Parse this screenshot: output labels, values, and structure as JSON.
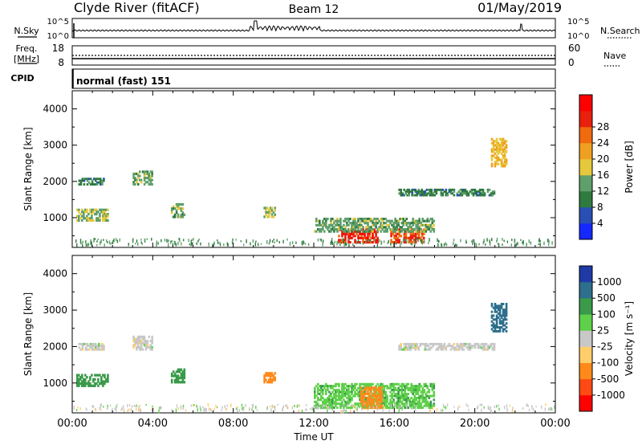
{
  "header": {
    "station": "Clyde River (fitACF)",
    "beam": "Beam 12",
    "date": "01/May/2019"
  },
  "noise_panel": {
    "left_label": "N.Sky",
    "right_label": "N.Search",
    "left_ticks": [
      "10^5",
      "10^0"
    ],
    "right_ticks": [
      "10^5",
      "10^0"
    ]
  },
  "freq_panel": {
    "left_label_1": "Freq.",
    "left_label_2": "[MHz]",
    "right_label": "Nave",
    "left_ticks": [
      "18",
      "8"
    ],
    "right_ticks": [
      "60",
      "0"
    ]
  },
  "cpid": {
    "label": "CPID",
    "value": "normal (fast) 151"
  },
  "x_axis": {
    "label": "Time UT",
    "ticks": [
      "00:00",
      "04:00",
      "08:00",
      "12:00",
      "16:00",
      "20:00",
      "00:00"
    ]
  },
  "colors": {
    "power_scale": [
      "#1428ff",
      "#2a4fb4",
      "#2f7a3f",
      "#5f9f6c",
      "#e6c83c",
      "#f0a020",
      "#f06a10",
      "#e8200c",
      "#ff0000"
    ],
    "velocity_scale": [
      "#ff0000",
      "#ff4a14",
      "#ff8a1a",
      "#ffcd6a",
      "#c8c8c8",
      "#5fd04a",
      "#3a9a4a",
      "#2d6f8c",
      "#1f3aa6"
    ]
  },
  "chart_data": [
    {
      "type": "heatmap",
      "title": "",
      "xlabel": "Time UT",
      "ylabel": "Slant Range [km]",
      "y_ticks": [
        1000,
        2000,
        3000,
        4000
      ],
      "colorbar": {
        "label": "Power [dB]",
        "ticks": [
          "4",
          "8",
          "12",
          "16",
          "20",
          "24",
          "28"
        ]
      },
      "regions": [
        {
          "t0": 0.2,
          "t1": 1.8,
          "r0": 900,
          "r1": 1250,
          "value": 14
        },
        {
          "t0": 0.3,
          "t1": 1.6,
          "r0": 1900,
          "r1": 2100,
          "value": 8
        },
        {
          "t0": 3.0,
          "t1": 4.0,
          "r0": 1900,
          "r1": 2300,
          "value": 12
        },
        {
          "t0": 4.9,
          "t1": 5.6,
          "r0": 1000,
          "r1": 1400,
          "value": 12
        },
        {
          "t0": 9.5,
          "t1": 10.1,
          "r0": 1000,
          "r1": 1300,
          "value": 14
        },
        {
          "t0": 13.2,
          "t1": 15.2,
          "r0": 300,
          "r1": 700,
          "value": 28
        },
        {
          "t0": 15.8,
          "t1": 17.5,
          "r0": 300,
          "r1": 700,
          "value": 26
        },
        {
          "t0": 12.0,
          "t1": 18.0,
          "r0": 600,
          "r1": 1000,
          "value": 12
        },
        {
          "t0": 16.2,
          "t1": 21.0,
          "r0": 1600,
          "r1": 1800,
          "value": 8
        },
        {
          "t0": 20.8,
          "t1": 21.6,
          "r0": 2400,
          "r1": 3200,
          "value": 18
        }
      ]
    },
    {
      "type": "heatmap",
      "title": "",
      "xlabel": "Time UT",
      "ylabel": "Slant Range [km]",
      "y_ticks": [
        1000,
        2000,
        3000,
        4000
      ],
      "colorbar": {
        "label": "Velocity [m s⁻¹]",
        "ticks": [
          "-1000",
          "-500",
          "-100",
          "-25",
          "25",
          "100",
          "500",
          "1000"
        ]
      },
      "regions": [
        {
          "t0": 0.2,
          "t1": 1.8,
          "r0": 900,
          "r1": 1250,
          "value": 150
        },
        {
          "t0": 0.3,
          "t1": 1.6,
          "r0": 1900,
          "r1": 2100,
          "value": 0
        },
        {
          "t0": 3.0,
          "t1": 4.0,
          "r0": 1900,
          "r1": 2300,
          "value": 0
        },
        {
          "t0": 4.9,
          "t1": 5.6,
          "r0": 1000,
          "r1": 1400,
          "value": 150
        },
        {
          "t0": 9.5,
          "t1": 10.1,
          "r0": 1000,
          "r1": 1300,
          "value": -300
        },
        {
          "t0": 12.0,
          "t1": 18.0,
          "r0": 300,
          "r1": 1000,
          "value": 80
        },
        {
          "t0": 14.3,
          "t1": 15.4,
          "r0": 300,
          "r1": 900,
          "value": -300
        },
        {
          "t0": 16.2,
          "t1": 21.0,
          "r0": 1900,
          "r1": 2100,
          "value": 0
        },
        {
          "t0": 20.8,
          "t1": 21.6,
          "r0": 2400,
          "r1": 3200,
          "value": 800
        }
      ]
    }
  ]
}
